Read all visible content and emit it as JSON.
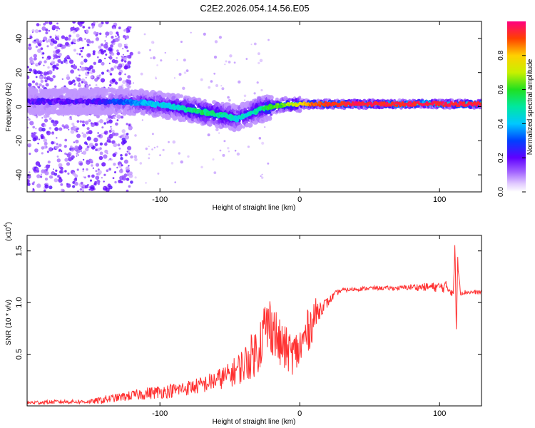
{
  "title": "C2E2.2026.054.14.56.E05",
  "chart_data": [
    {
      "type": "heatmap",
      "xlabel": "Height of straight line (km)",
      "ylabel": "Frequency (Hz)",
      "xlim": [
        -195,
        130
      ],
      "ylim": [
        -50,
        50
      ],
      "xticks": [
        -100,
        0,
        100
      ],
      "yticks": [
        -40,
        -20,
        0,
        20,
        40
      ],
      "colorbar": {
        "label": "Normalized spectral amplitude",
        "range": [
          0,
          1
        ],
        "ticks": [
          0.0,
          0.2,
          0.4,
          0.6,
          0.8
        ],
        "tick_labels": [
          "0.0",
          "0.2",
          "0.4",
          "0.6",
          "0.8"
        ]
      },
      "ridge": {
        "x": [
          -195,
          -170,
          -150,
          -130,
          -110,
          -90,
          -70,
          -55,
          -45,
          -38,
          -30,
          -20,
          -10,
          0,
          10,
          20,
          40,
          60,
          80,
          90,
          100,
          110,
          130
        ],
        "freq": [
          3,
          3,
          3,
          3,
          2,
          0,
          -3,
          -5,
          -7,
          -5,
          -2,
          0,
          1,
          1.5,
          1.5,
          1.5,
          1.5,
          1.5,
          1.5,
          2,
          1.5,
          1.5,
          1.5
        ],
        "amplitude": [
          0.2,
          0.2,
          0.2,
          0.3,
          0.4,
          0.45,
          0.55,
          0.5,
          0.45,
          0.45,
          0.5,
          0.6,
          0.65,
          0.75,
          0.9,
          0.92,
          0.95,
          0.95,
          0.95,
          0.95,
          0.95,
          0.95,
          0.95
        ]
      }
    },
    {
      "type": "line",
      "xlabel": "Height of straight line (km)",
      "ylabel": "SNR (10 * v/v)",
      "scale_label": "(x10^4)",
      "scale_base": "(x10",
      "scale_exp": "4",
      "xlim": [
        -195,
        130
      ],
      "ylim": [
        0,
        1.65
      ],
      "xticks": [
        -100,
        0,
        100
      ],
      "yticks": [
        0.5,
        1.0,
        1.5
      ],
      "ytick_labels": [
        "0.5",
        "1.0",
        "1.5"
      ],
      "color": "#ff3030",
      "series": [
        {
          "name": "SNR",
          "x": [
            -195,
            -170,
            -150,
            -140,
            -130,
            -110,
            -90,
            -70,
            -60,
            -50,
            -40,
            -30,
            -25,
            -20,
            -15,
            -10,
            -5,
            0,
            5,
            10,
            15,
            20,
            25,
            30,
            40,
            50,
            60,
            70,
            80,
            90,
            100,
            105,
            110,
            111,
            112,
            113,
            115,
            120,
            130
          ],
          "y": [
            0.03,
            0.04,
            0.04,
            0.06,
            0.08,
            0.12,
            0.15,
            0.2,
            0.25,
            0.3,
            0.4,
            0.55,
            0.75,
            0.8,
            0.6,
            0.55,
            0.5,
            0.55,
            0.7,
            0.85,
            0.95,
            1.0,
            1.08,
            1.12,
            1.13,
            1.14,
            1.14,
            1.14,
            1.15,
            1.15,
            1.15,
            1.15,
            1.1,
            1.6,
            0.7,
            1.4,
            1.1,
            1.1,
            1.1
          ],
          "noise": [
            0.02,
            0.02,
            0.02,
            0.04,
            0.04,
            0.06,
            0.07,
            0.08,
            0.1,
            0.12,
            0.18,
            0.25,
            0.3,
            0.3,
            0.25,
            0.22,
            0.2,
            0.22,
            0.22,
            0.2,
            0.08,
            0.05,
            0.03,
            0.02,
            0.02,
            0.02,
            0.02,
            0.02,
            0.03,
            0.04,
            0.05,
            0.06,
            0.05,
            0.05,
            0.05,
            0.05,
            0.03,
            0.02,
            0.02
          ]
        }
      ]
    }
  ]
}
